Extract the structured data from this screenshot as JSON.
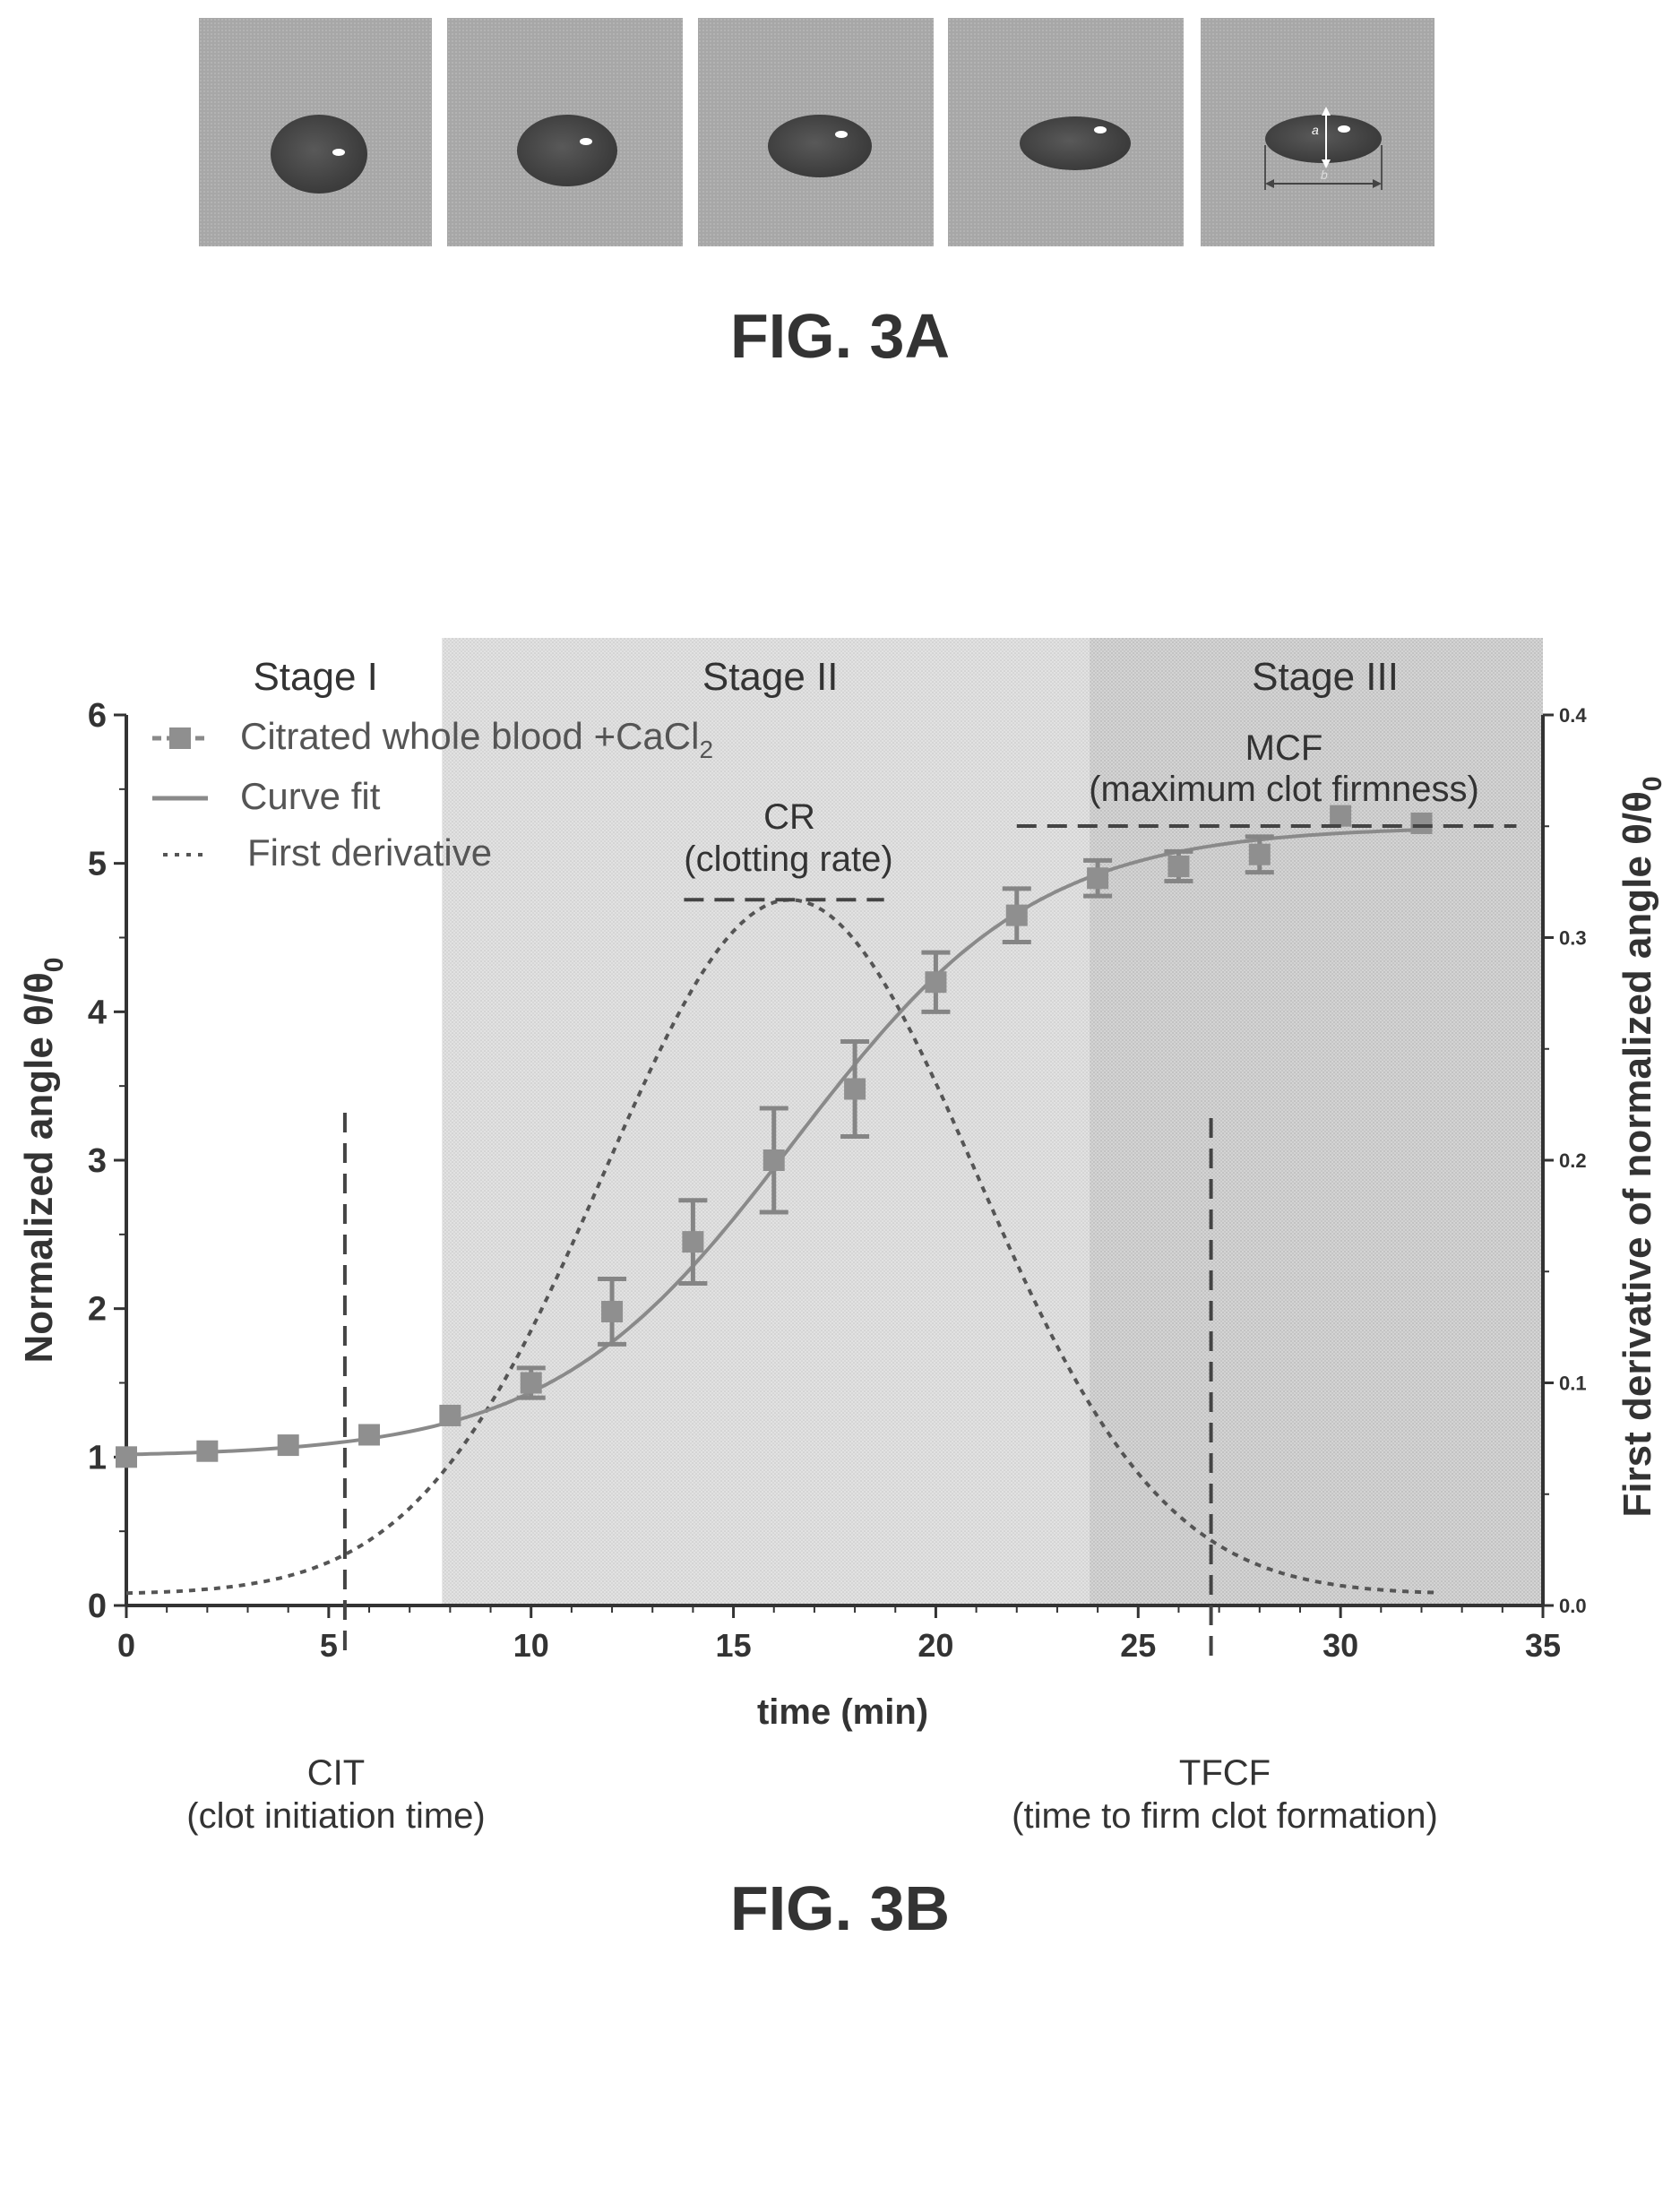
{
  "fig_a": {
    "label": "FIG. 3A",
    "annotation_a": "a",
    "annotation_b": "b"
  },
  "fig_b": {
    "label": "FIG. 3B"
  },
  "chart_data": {
    "type": "line",
    "xlabel": "time (min)",
    "ylabel": "Normalized angle θ/θ",
    "ylabel_subscript": "0",
    "y2label": "First derivative of normalized angle θ/θ",
    "y2label_subscript": "0",
    "xlim": [
      0,
      35
    ],
    "ylim": [
      0,
      6
    ],
    "y2lim": [
      0,
      0.4
    ],
    "xticks": [
      0,
      5,
      10,
      15,
      20,
      25,
      30,
      35
    ],
    "yticks": [
      0,
      1,
      2,
      3,
      4,
      5,
      6
    ],
    "y2ticks": [
      0.0,
      0.1,
      0.2,
      0.3,
      0.4
    ],
    "y2tick_labels": [
      "0.0",
      "0.1",
      "0.2",
      "0.3",
      "0.4"
    ],
    "legend": {
      "position": "top-left",
      "entries": [
        {
          "name": "Citrated whole blood +CaCl",
          "subscript": "2",
          "style": "square-marker-with-line"
        },
        {
          "name": "Curve fit",
          "style": "solid"
        },
        {
          "name": "First derivative",
          "style": "dotted"
        }
      ]
    },
    "stages": [
      {
        "label": "Stage I",
        "x_start": 0,
        "x_end": 7.8,
        "shade": "#ffffff"
      },
      {
        "label": "Stage II",
        "x_start": 7.8,
        "x_end": 23.8,
        "shade": "#dcdcdc"
      },
      {
        "label": "Stage III",
        "x_start": 23.8,
        "x_end": 35,
        "shade": "#cfcfcf"
      }
    ],
    "series": [
      {
        "name": "Citrated whole blood +CaCl2",
        "axis": "left",
        "x": [
          0,
          2,
          4,
          6,
          8,
          10,
          12,
          14,
          16,
          18,
          20,
          22,
          24,
          26,
          28,
          30,
          32
        ],
        "y": [
          1.0,
          1.04,
          1.08,
          1.15,
          1.28,
          1.5,
          1.98,
          2.45,
          3.0,
          3.48,
          4.2,
          4.65,
          4.9,
          4.98,
          5.06,
          5.32,
          5.27
        ],
        "err": [
          0.03,
          0.03,
          0.04,
          0.04,
          0.05,
          0.1,
          0.22,
          0.28,
          0.35,
          0.32,
          0.2,
          0.18,
          0.12,
          0.1,
          0.12,
          0.05,
          0.04
        ]
      },
      {
        "name": "Curve fit",
        "axis": "left",
        "model": {
          "base": 1.0,
          "amplitude": 4.25,
          "midpoint": 16.5,
          "width": 3.0
        },
        "x_range": [
          0,
          32
        ]
      },
      {
        "name": "First derivative",
        "axis": "right",
        "x_range": [
          0,
          32.5
        ]
      }
    ],
    "annotations": [
      {
        "name": "cit",
        "label": "CIT",
        "sublabel": "(clot initiation time)",
        "x": 5.4
      },
      {
        "name": "tfcf",
        "label": "TFCF",
        "sublabel": "(time to firm clot formation)",
        "x": 26.8
      },
      {
        "name": "cr",
        "label": "CR",
        "sublabel": "(clotting rate)",
        "x_start": 14,
        "x_end": 18.5,
        "y2": 0.317
      },
      {
        "name": "mcf",
        "label": "MCF",
        "sublabel": "(maximum clot firmness)",
        "x_start": 22,
        "x_end": 34.7,
        "y": 5.3
      }
    ]
  }
}
